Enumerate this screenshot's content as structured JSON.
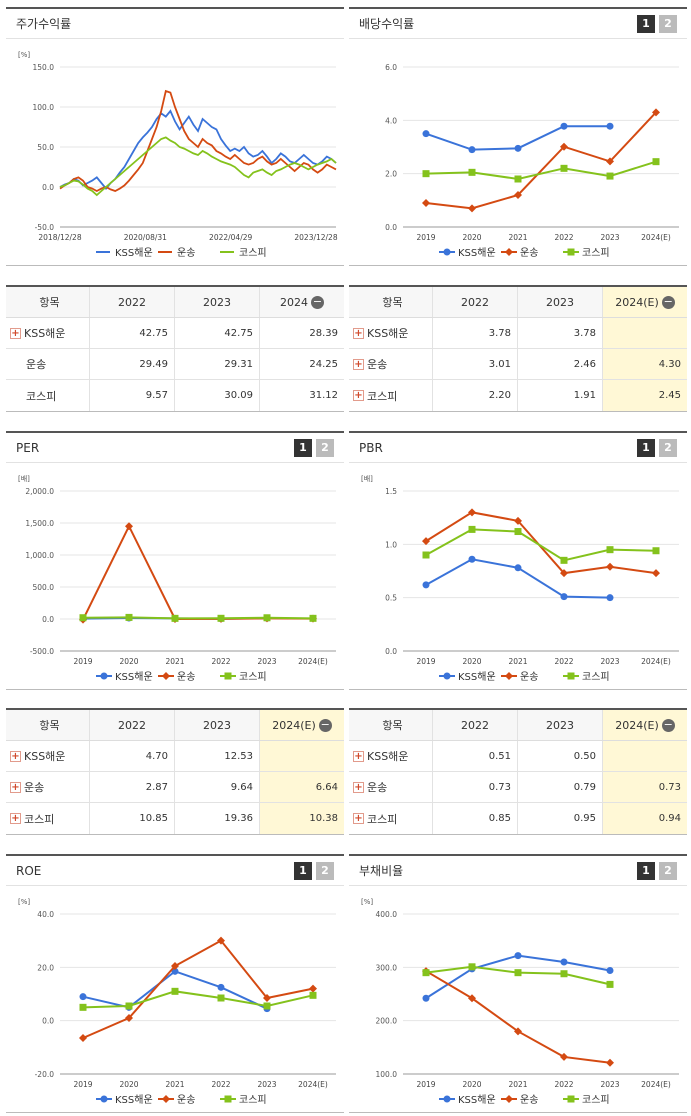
{
  "panels": {
    "stock": {
      "title": "주가수익률",
      "unit": "[%]"
    },
    "div": {
      "title": "배당수익률",
      "unit": ""
    },
    "per": {
      "title": "PER",
      "unit": "[배]"
    },
    "pbr": {
      "title": "PBR",
      "unit": "[배]"
    },
    "roe": {
      "title": "ROE",
      "unit": "[%]"
    },
    "debt": {
      "title": "부채비율",
      "unit": "[%]"
    }
  },
  "pager": [
    "1",
    "2"
  ],
  "legend": [
    "KSS해운",
    "운송",
    "코스피"
  ],
  "colors": {
    "KSS해운": "#3a73d9",
    "운송": "#d44a12",
    "코스피": "#84c21c"
  },
  "tables": {
    "stock": {
      "header": [
        "항목",
        "2022",
        "2023",
        "2024"
      ],
      "rows": [
        {
          "name": "KSS해운",
          "plus": true,
          "vals": [
            "42.75",
            "42.75",
            "28.39"
          ]
        },
        {
          "name": "운송",
          "plus": false,
          "vals": [
            "29.49",
            "29.31",
            "24.25"
          ]
        },
        {
          "name": "코스피",
          "plus": false,
          "vals": [
            "9.57",
            "30.09",
            "31.12"
          ]
        }
      ]
    },
    "div": {
      "header": [
        "항목",
        "2022",
        "2023",
        "2024(E)"
      ],
      "rows": [
        {
          "name": "KSS해운",
          "plus": true,
          "vals": [
            "3.78",
            "3.78",
            ""
          ]
        },
        {
          "name": "운송",
          "plus": true,
          "vals": [
            "3.01",
            "2.46",
            "4.30"
          ]
        },
        {
          "name": "코스피",
          "plus": true,
          "vals": [
            "2.20",
            "1.91",
            "2.45"
          ]
        }
      ]
    },
    "per": {
      "header": [
        "항목",
        "2022",
        "2023",
        "2024(E)"
      ],
      "rows": [
        {
          "name": "KSS해운",
          "plus": true,
          "vals": [
            "4.70",
            "12.53",
            ""
          ]
        },
        {
          "name": "운송",
          "plus": true,
          "vals": [
            "2.87",
            "9.64",
            "6.64"
          ]
        },
        {
          "name": "코스피",
          "plus": true,
          "vals": [
            "10.85",
            "19.36",
            "10.38"
          ]
        }
      ]
    },
    "pbr": {
      "header": [
        "항목",
        "2022",
        "2023",
        "2024(E)"
      ],
      "rows": [
        {
          "name": "KSS해운",
          "plus": true,
          "vals": [
            "0.51",
            "0.50",
            ""
          ]
        },
        {
          "name": "운송",
          "plus": true,
          "vals": [
            "0.73",
            "0.79",
            "0.73"
          ]
        },
        {
          "name": "코스피",
          "plus": true,
          "vals": [
            "0.85",
            "0.95",
            "0.94"
          ]
        }
      ]
    }
  },
  "chart_data": [
    {
      "id": "stock",
      "type": "line",
      "ylabel": "[%]",
      "ylim": [
        -50,
        150
      ],
      "yticks": [
        "150.0",
        "100.0",
        "50.0",
        "0.0",
        "-50.0"
      ],
      "xticks": [
        "2018/12/28",
        "2020/08/31",
        "2022/04/29",
        "2023/12/28"
      ],
      "series": [
        {
          "name": "KSS해운",
          "values": [
            0,
            3,
            5,
            10,
            8,
            2,
            5,
            8,
            12,
            5,
            -2,
            5,
            10,
            18,
            25,
            35,
            45,
            55,
            62,
            68,
            75,
            85,
            92,
            88,
            95,
            82,
            72,
            80,
            88,
            78,
            70,
            85,
            80,
            75,
            72,
            60,
            52,
            45,
            48,
            45,
            50,
            42,
            38,
            40,
            45,
            38,
            30,
            35,
            42,
            38,
            32,
            30,
            35,
            40,
            35,
            30,
            28,
            32,
            38,
            35,
            30
          ]
        },
        {
          "name": "운송",
          "values": [
            -2,
            2,
            5,
            10,
            12,
            8,
            0,
            -2,
            -5,
            -2,
            0,
            -3,
            -5,
            -2,
            2,
            8,
            15,
            22,
            30,
            45,
            60,
            75,
            95,
            120,
            118,
            100,
            85,
            70,
            60,
            55,
            50,
            60,
            55,
            52,
            45,
            42,
            38,
            35,
            40,
            35,
            30,
            28,
            30,
            35,
            38,
            32,
            28,
            30,
            35,
            30,
            25,
            20,
            25,
            30,
            28,
            22,
            18,
            22,
            28,
            25,
            22
          ]
        },
        {
          "name": "코스피",
          "values": [
            0,
            2,
            5,
            8,
            7,
            3,
            -2,
            -5,
            -10,
            -5,
            0,
            5,
            10,
            15,
            20,
            25,
            30,
            35,
            40,
            45,
            50,
            55,
            60,
            62,
            58,
            55,
            50,
            48,
            45,
            42,
            40,
            45,
            42,
            38,
            35,
            32,
            30,
            28,
            25,
            20,
            15,
            12,
            18,
            20,
            22,
            18,
            15,
            20,
            22,
            25,
            28,
            30,
            28,
            25,
            22,
            25,
            28,
            30,
            32,
            35,
            30
          ]
        }
      ]
    },
    {
      "id": "div",
      "type": "line",
      "ylim": [
        0,
        6
      ],
      "yticks": [
        "6.0",
        "4.0",
        "2.0",
        "0.0"
      ],
      "categories": [
        "2019",
        "2020",
        "2021",
        "2022",
        "2023",
        "2024(E)"
      ],
      "series": [
        {
          "name": "KSS해운",
          "values": [
            3.5,
            2.9,
            2.95,
            3.78,
            3.78,
            null
          ]
        },
        {
          "name": "운송",
          "values": [
            0.9,
            0.7,
            1.2,
            3.01,
            2.46,
            4.3
          ]
        },
        {
          "name": "코스피",
          "values": [
            2.0,
            2.05,
            1.8,
            2.2,
            1.91,
            2.45
          ]
        }
      ]
    },
    {
      "id": "per",
      "type": "line",
      "ylabel": "[배]",
      "ylim": [
        -500,
        2000
      ],
      "yticks": [
        "2,000.0",
        "1,500.0",
        "1,000.0",
        "500.0",
        "0.0",
        "-500.0"
      ],
      "categories": [
        "2019",
        "2020",
        "2021",
        "2022",
        "2023",
        "2024(E)"
      ],
      "series": [
        {
          "name": "KSS해운",
          "values": [
            5,
            15,
            10,
            4.7,
            12.53,
            null
          ]
        },
        {
          "name": "운송",
          "values": [
            -10,
            1450,
            0,
            2.87,
            9.64,
            6.64
          ]
        },
        {
          "name": "코스피",
          "values": [
            20,
            25,
            10,
            10.85,
            19.36,
            10.38
          ]
        }
      ]
    },
    {
      "id": "pbr",
      "type": "line",
      "ylabel": "[배]",
      "ylim": [
        0,
        1.5
      ],
      "yticks": [
        "1.5",
        "1.0",
        "0.5",
        "0.0"
      ],
      "categories": [
        "2019",
        "2020",
        "2021",
        "2022",
        "2023",
        "2024(E)"
      ],
      "series": [
        {
          "name": "KSS해운",
          "values": [
            0.62,
            0.86,
            0.78,
            0.51,
            0.5,
            null
          ]
        },
        {
          "name": "운송",
          "values": [
            1.03,
            1.3,
            1.22,
            0.73,
            0.79,
            0.73
          ]
        },
        {
          "name": "코스피",
          "values": [
            0.9,
            1.14,
            1.12,
            0.85,
            0.95,
            0.94
          ]
        }
      ]
    },
    {
      "id": "roe",
      "type": "line",
      "ylabel": "[%]",
      "ylim": [
        -20,
        40
      ],
      "yticks": [
        "40.0",
        "20.0",
        "0.0",
        "-20.0"
      ],
      "categories": [
        "2019",
        "2020",
        "2021",
        "2022",
        "2023",
        "2024(E)"
      ],
      "series": [
        {
          "name": "KSS해운",
          "values": [
            9,
            5,
            18.5,
            12.5,
            4.5,
            null
          ]
        },
        {
          "name": "운송",
          "values": [
            -6.5,
            1,
            20.5,
            30,
            8.5,
            12
          ]
        },
        {
          "name": "코스피",
          "values": [
            5,
            5.5,
            11,
            8.5,
            5.5,
            9.5
          ]
        }
      ]
    },
    {
      "id": "debt",
      "type": "line",
      "ylabel": "[%]",
      "ylim": [
        100,
        400
      ],
      "yticks": [
        "400.0",
        "300.0",
        "200.0",
        "100.0"
      ],
      "categories": [
        "2019",
        "2020",
        "2021",
        "2022",
        "2023",
        "2024(E)"
      ],
      "series": [
        {
          "name": "KSS해운",
          "values": [
            242,
            297,
            322,
            310,
            294,
            null
          ]
        },
        {
          "name": "운송",
          "values": [
            293,
            242,
            180,
            132,
            121,
            null
          ]
        },
        {
          "name": "코스피",
          "values": [
            290,
            301,
            290,
            288,
            268,
            null
          ]
        }
      ]
    }
  ]
}
